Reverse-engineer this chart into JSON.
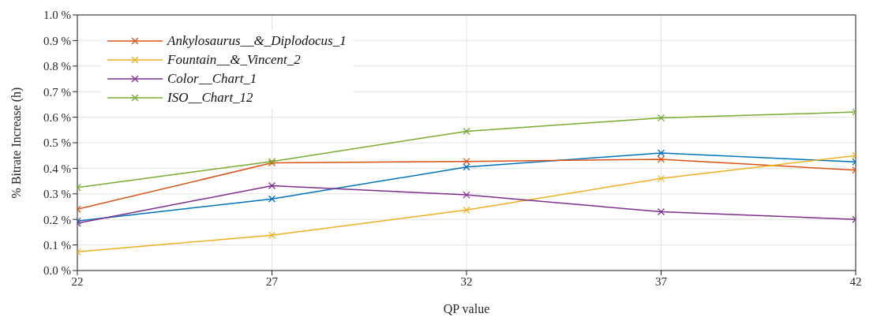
{
  "chart_data": {
    "type": "line",
    "xlabel": "QP value",
    "ylabel": "% Bitrate Increase (h)",
    "x": [
      22,
      27,
      32,
      37,
      42
    ],
    "series": [
      {
        "color": "#0072bd",
        "values": [
          0.194,
          0.28,
          0.405,
          0.46,
          0.425
        ]
      },
      {
        "name": "Ankylosaurus__&_Diplodocus_1",
        "color": "#d95319",
        "values": [
          0.24,
          0.421,
          0.427,
          0.435,
          0.393
        ]
      },
      {
        "name": "Fountain__&_Vincent_2",
        "color": "#edb120",
        "values": [
          0.073,
          0.138,
          0.237,
          0.36,
          0.45
        ]
      },
      {
        "name": "Color__Chart_1",
        "color": "#7e2f8e",
        "values": [
          0.185,
          0.332,
          0.296,
          0.23,
          0.2
        ]
      },
      {
        "name": "ISO__Chart_12",
        "color": "#77ac30",
        "values": [
          0.325,
          0.427,
          0.545,
          0.597,
          0.62
        ]
      }
    ],
    "xlim": [
      22,
      42
    ],
    "xticks": [
      22,
      27,
      32,
      37,
      42
    ],
    "ylim": [
      0,
      1
    ],
    "yticks": [
      {
        "value": 0,
        "label": "0.0 %"
      },
      {
        "value": 0.1,
        "label": "0.1 %"
      },
      {
        "value": 0.2,
        "label": "0.2 %"
      },
      {
        "value": 0.3,
        "label": "0.3 %"
      },
      {
        "value": 0.4,
        "label": "0.4 %"
      },
      {
        "value": 0.5,
        "label": "0.5 %"
      },
      {
        "value": 0.6,
        "label": "0.6 %"
      },
      {
        "value": 0.7,
        "label": "0.7 %"
      },
      {
        "value": 0.8,
        "label": "0.8 %"
      },
      {
        "value": 0.9,
        "label": "0.9 %"
      },
      {
        "value": 1,
        "label": "1.0 %"
      }
    ],
    "grid": true,
    "legend": "top left",
    "marker": "cross",
    "line_style": "solid"
  }
}
